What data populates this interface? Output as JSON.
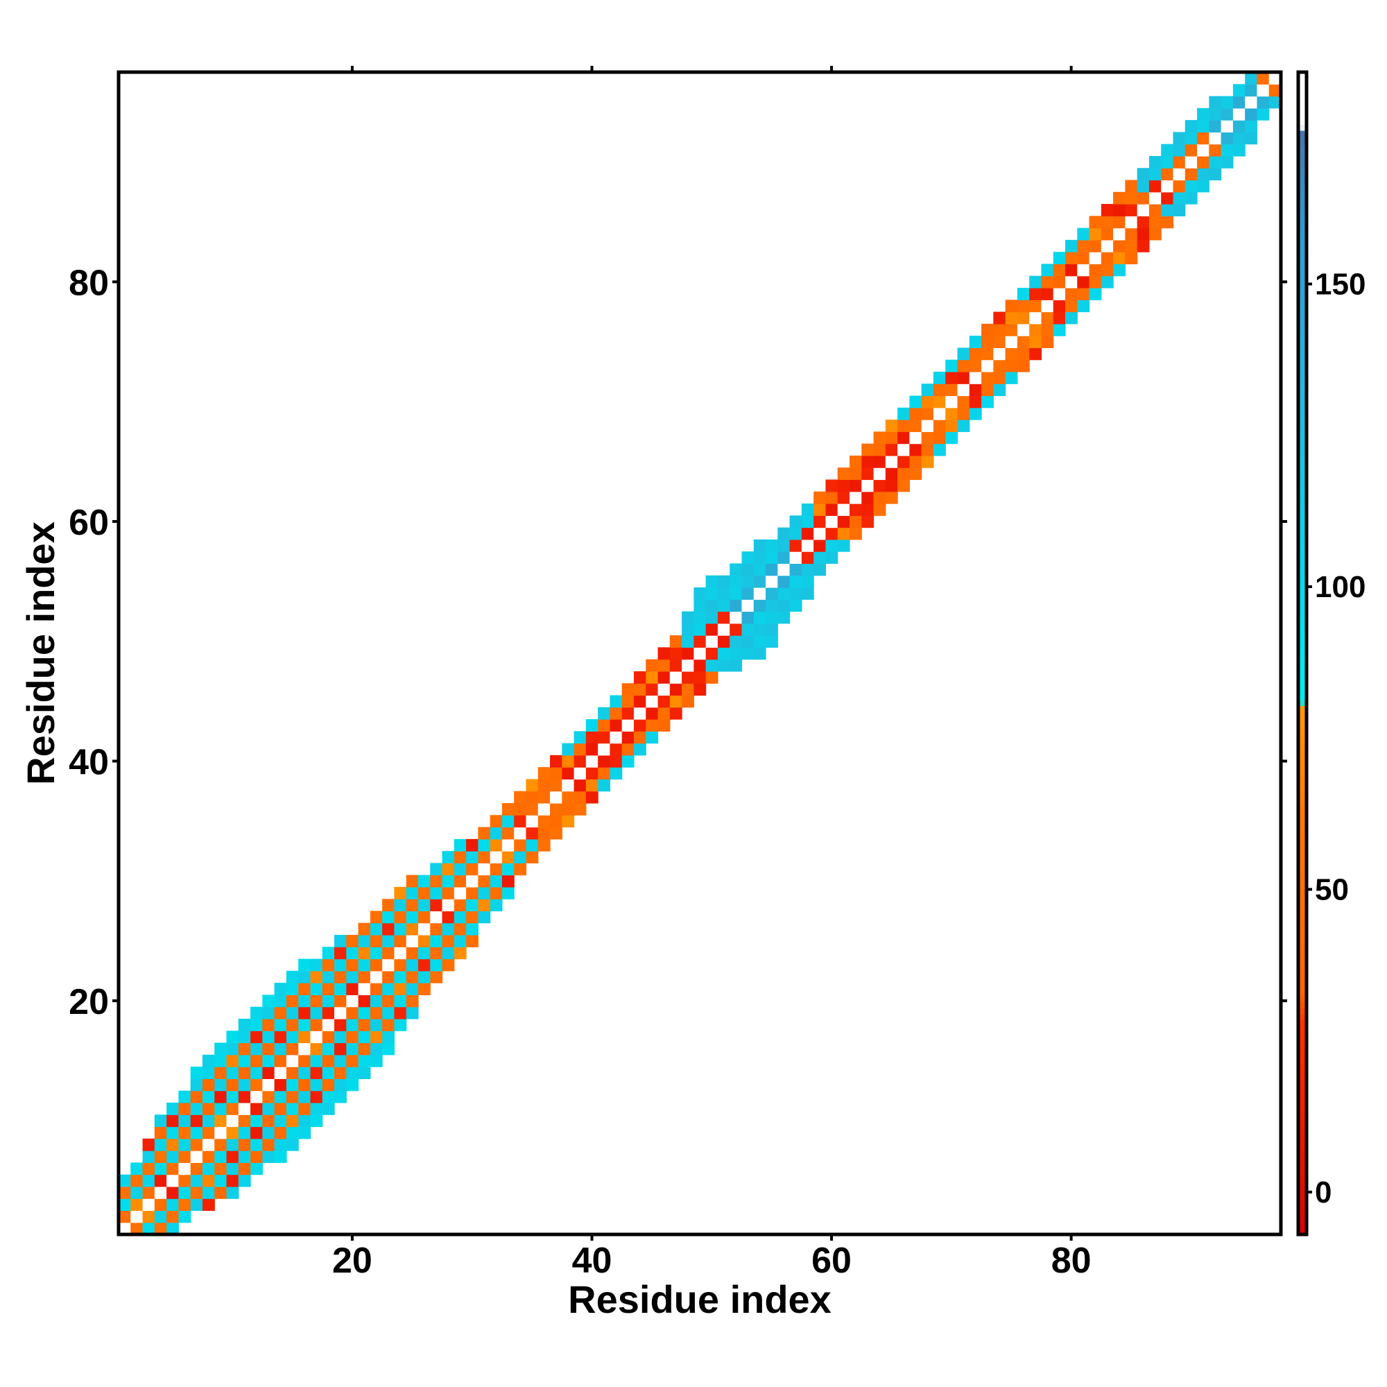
{
  "chart_data": {
    "type": "heatmap",
    "title": "",
    "xlabel": "Residue index",
    "ylabel": "Residue index",
    "xlim": [
      0.5,
      97.5
    ],
    "ylim": [
      0.5,
      97.5
    ],
    "x_ticks": [
      20,
      40,
      60,
      80
    ],
    "y_ticks": [
      20,
      40,
      60,
      80
    ],
    "grid": false,
    "n_residues": 97,
    "band_half_width": {
      "1": 4,
      "2": 4,
      "3": 5,
      "4": 6,
      "5": 6,
      "6": 6,
      "7": 7,
      "8": 7,
      "9": 7,
      "10": 7,
      "11": 7,
      "12": 7,
      "13": 7,
      "14": 7,
      "15": 7,
      "16": 7,
      "17": 7,
      "18": 7,
      "19": 7,
      "20": 7,
      "21": 7,
      "22": 7,
      "23": 7,
      "24": 6,
      "25": 6,
      "26": 5,
      "27": 5,
      "28": 5,
      "29": 5,
      "30": 5,
      "31": 4,
      "32": 4,
      "33": 4,
      "34": 3,
      "35": 3,
      "36": 3,
      "37": 3,
      "38": 3,
      "39": 3,
      "40": 3,
      "41": 3,
      "42": 3,
      "43": 3,
      "44": 3,
      "45": 3,
      "46": 3,
      "47": 3,
      "48": 4,
      "49": 5,
      "50": 5,
      "51": 5,
      "52": 5,
      "53": 5,
      "54": 5,
      "55": 5,
      "56": 4,
      "57": 4,
      "58": 4,
      "59": 3,
      "60": 3,
      "61": 3,
      "62": 3,
      "63": 3,
      "64": 3,
      "65": 3,
      "66": 3,
      "67": 3,
      "68": 3,
      "69": 3,
      "70": 3,
      "71": 3,
      "72": 3,
      "73": 3,
      "74": 3,
      "75": 3,
      "76": 3,
      "77": 3,
      "78": 3,
      "79": 3,
      "80": 3,
      "81": 3,
      "82": 3,
      "83": 3,
      "84": 3,
      "85": 3,
      "86": 3,
      "87": 3,
      "88": 3,
      "89": 3,
      "90": 3,
      "91": 3,
      "92": 3,
      "93": 3,
      "94": 3,
      "95": 3,
      "96": 2,
      "97": 2
    },
    "cyan_regions": [
      {
        "i": [
          1,
          33
        ],
        "offsets": [
          2,
          4,
          6,
          7
        ],
        "value": 100
      },
      {
        "i": [
          38,
          42
        ],
        "offsets": [
          3
        ],
        "value": 100
      },
      {
        "i": [
          48,
          58
        ],
        "offsets": [
          2,
          3,
          4,
          5
        ],
        "value": 110
      },
      {
        "i": [
          52,
          56
        ],
        "offsets": [
          1,
          3
        ],
        "value": 130
      },
      {
        "i": [
          66,
          72
        ],
        "offsets": [
          3
        ],
        "value": 100
      },
      {
        "i": [
          76,
          81
        ],
        "offsets": [
          3
        ],
        "value": 100
      },
      {
        "i": [
          86,
          97
        ],
        "offsets": [
          2,
          3
        ],
        "value": 110
      },
      {
        "i": [
          92,
          95
        ],
        "offsets": [
          1
        ],
        "value": 130
      }
    ],
    "red_regions": [
      {
        "i": [
          38,
          66
        ],
        "offsets": [
          1
        ],
        "value": 10
      }
    ],
    "colorbar": {
      "range": [
        -7,
        185
      ],
      "ticks": [
        0,
        50,
        100,
        150
      ],
      "tick_labels": [
        "0",
        "50",
        "100",
        "150"
      ],
      "stops": [
        {
          "value": -7,
          "color": "#dd0000"
        },
        {
          "value": 28,
          "color": "#ff3300"
        },
        {
          "value": 33,
          "color": "#ff6600"
        },
        {
          "value": 60,
          "color": "#ff7700"
        },
        {
          "value": 80,
          "color": "#ff9900"
        },
        {
          "value": 81,
          "color": "#00eeee"
        },
        {
          "value": 100,
          "color": "#00ddee"
        },
        {
          "value": 130,
          "color": "#22bbdd"
        },
        {
          "value": 160,
          "color": "#3399cc"
        },
        {
          "value": 175,
          "color": "#4477aa"
        },
        {
          "value": 176,
          "color": "#ffffff"
        },
        {
          "value": 185,
          "color": "#ffffff"
        }
      ]
    }
  }
}
